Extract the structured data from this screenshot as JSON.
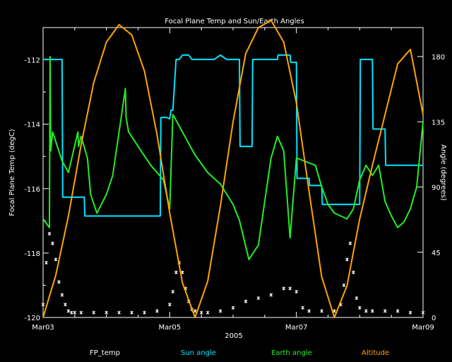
{
  "chart_data": {
    "type": "line",
    "title": "Focal Plane Temp and Sun/Earth Angles",
    "xlabel": "2005",
    "ylabel_left": "Focal Plane Temp (degC)",
    "ylabel_right": "Angle (degrees)",
    "x_ticks": [
      "Mar03",
      "Mar05",
      "Mar07",
      "Mar09"
    ],
    "x_range_days": [
      0,
      6
    ],
    "ylim_left": [
      -120,
      -111
    ],
    "ylim_right": [
      0,
      200
    ],
    "left_ticks": [
      -120,
      -118,
      -116,
      -114,
      -112
    ],
    "right_ticks": [
      0,
      45,
      90,
      135,
      180
    ],
    "grid": false,
    "legend_placement": "bottom",
    "series": [
      {
        "name": "FP_temp",
        "color": "#ffffff",
        "axis": "left",
        "style": "points",
        "x": [
          0.0,
          0.05,
          0.1,
          0.15,
          0.2,
          0.25,
          0.3,
          0.35,
          0.4,
          0.45,
          0.5,
          0.6,
          0.8,
          1.0,
          1.2,
          1.4,
          1.6,
          1.8,
          2.0,
          2.05,
          2.1,
          2.15,
          2.2,
          2.25,
          2.3,
          2.35,
          2.4,
          2.5,
          2.6,
          2.8,
          3.0,
          3.2,
          3.4,
          3.6,
          3.8,
          3.9,
          4.0,
          4.1,
          4.2,
          4.4,
          4.6,
          4.7,
          4.75,
          4.8,
          4.85,
          4.9,
          4.95,
          5.0,
          5.1,
          5.2,
          5.4,
          5.6,
          5.8,
          6.0
        ],
        "y": [
          -119.6,
          -118.3,
          -117.4,
          -117.7,
          -118.2,
          -118.9,
          -119.3,
          -119.6,
          -119.8,
          -119.85,
          -119.85,
          -119.85,
          -119.85,
          -119.85,
          -119.85,
          -119.85,
          -119.85,
          -119.8,
          -119.6,
          -119.2,
          -118.6,
          -118.3,
          -118.6,
          -119.1,
          -119.5,
          -119.75,
          -119.8,
          -119.85,
          -119.85,
          -119.8,
          -119.7,
          -119.5,
          -119.4,
          -119.3,
          -119.1,
          -119.1,
          -119.2,
          -119.7,
          -119.8,
          -119.8,
          -119.8,
          -119.6,
          -119.0,
          -118.2,
          -117.7,
          -118.6,
          -119.4,
          -119.7,
          -119.8,
          -119.8,
          -119.8,
          -119.8,
          -119.85,
          -119.85
        ]
      },
      {
        "name": "Sun angle",
        "color": "#00e5ff",
        "axis": "right",
        "style": "line",
        "x": [
          0.0,
          0.3,
          0.31,
          0.65,
          0.66,
          1.85,
          1.86,
          1.95,
          2.0,
          2.02,
          2.05,
          2.1,
          2.15,
          2.2,
          2.3,
          2.35,
          2.4,
          2.5,
          2.6,
          2.7,
          2.8,
          2.9,
          3.0,
          3.01,
          3.1,
          3.11,
          3.3,
          3.31,
          3.7,
          3.71,
          3.9,
          3.91,
          4.0,
          4.01,
          4.2,
          4.21,
          4.4,
          4.41,
          4.5,
          4.6,
          4.7,
          4.8,
          5.0,
          5.01,
          5.2,
          5.21,
          5.4,
          5.41,
          6.0
        ],
        "y": [
          178,
          178,
          83,
          83,
          70,
          70,
          138,
          138,
          137,
          143,
          143,
          178,
          178,
          181,
          181,
          178,
          178,
          178,
          178,
          178,
          181,
          178,
          178,
          178,
          178,
          118,
          118,
          178,
          178,
          181,
          181,
          176,
          176,
          96,
          96,
          91,
          91,
          78,
          78,
          78,
          78,
          78,
          78,
          178,
          178,
          130,
          130,
          105,
          105
        ]
      },
      {
        "name": "Earth angle",
        "color": "#22ee22",
        "axis": "right",
        "style": "line",
        "x": [
          0.0,
          0.1,
          0.11,
          0.12,
          0.15,
          0.3,
          0.4,
          0.55,
          0.56,
          0.6,
          0.7,
          0.75,
          0.85,
          1.0,
          1.1,
          1.3,
          1.31,
          1.35,
          1.5,
          1.7,
          1.9,
          2.0,
          2.05,
          2.25,
          2.4,
          2.6,
          2.8,
          3.0,
          3.1,
          3.25,
          3.4,
          3.5,
          3.6,
          3.7,
          3.8,
          3.9,
          4.0,
          4.3,
          4.4,
          4.5,
          4.6,
          4.7,
          4.8,
          4.9,
          5.0,
          5.1,
          5.2,
          5.3,
          5.4,
          5.5,
          5.6,
          5.7,
          5.8,
          5.9,
          6.0
        ],
        "y": [
          68,
          62,
          180,
          115,
          128,
          108,
          100,
          128,
          118,
          125,
          110,
          85,
          72,
          85,
          98,
          158,
          138,
          128,
          118,
          105,
          95,
          75,
          140,
          124,
          112,
          100,
          92,
          78,
          67,
          40,
          50,
          80,
          110,
          125,
          115,
          55,
          110,
          105,
          90,
          78,
          72,
          70,
          68,
          75,
          95,
          105,
          98,
          105,
          80,
          70,
          62,
          66,
          75,
          90,
          135
        ]
      },
      {
        "name": "Altitude",
        "color": "#ffa500",
        "axis": "right",
        "style": "line",
        "x": [
          0.0,
          0.2,
          0.4,
          0.6,
          0.8,
          1.0,
          1.2,
          1.4,
          1.6,
          1.8,
          2.0,
          2.2,
          2.4,
          2.6,
          2.8,
          3.0,
          3.2,
          3.4,
          3.6,
          3.8,
          4.0,
          4.2,
          4.4,
          4.6,
          4.8,
          5.0,
          5.2,
          5.4,
          5.6,
          5.8,
          6.0
        ],
        "y": [
          0,
          29,
          70,
          119,
          162,
          190,
          202,
          195,
          170,
          126,
          72,
          24,
          0,
          25,
          77,
          135,
          182,
          200,
          205,
          190,
          148,
          87,
          28,
          0,
          22,
          68,
          105,
          140,
          175,
          185,
          140
        ]
      }
    ]
  }
}
